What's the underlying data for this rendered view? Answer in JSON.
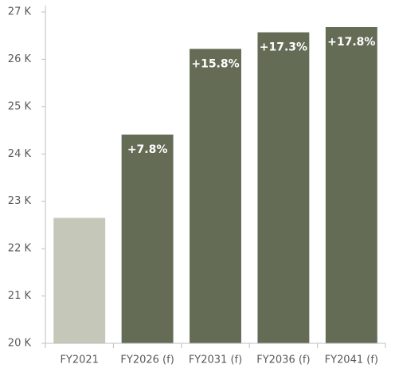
{
  "chart_data": {
    "type": "bar",
    "categories": [
      "FY2021",
      "FY2026 (f)",
      "FY2031 (f)",
      "FY2036 (f)",
      "FY2041 (f)"
    ],
    "values": [
      22650,
      24410,
      26220,
      26570,
      26680
    ],
    "colors": [
      "#c5c8b9",
      "#646c56",
      "#646c56",
      "#646c56",
      "#646c56"
    ],
    "annotations": [
      null,
      "+7.8%",
      "+15.8%",
      "+17.3%",
      "+17.8%"
    ],
    "ylim": [
      20000,
      27000
    ],
    "yticks": [
      {
        "value": 20000,
        "label": "20 K"
      },
      {
        "value": 21000,
        "label": "21 K"
      },
      {
        "value": 22000,
        "label": "22 K"
      },
      {
        "value": 23000,
        "label": "23 K"
      },
      {
        "value": 24000,
        "label": "24 K"
      },
      {
        "value": 25000,
        "label": "25 K"
      },
      {
        "value": 26000,
        "label": "26 K"
      },
      {
        "value": 27000,
        "label": "27 K"
      }
    ],
    "grid": false
  }
}
